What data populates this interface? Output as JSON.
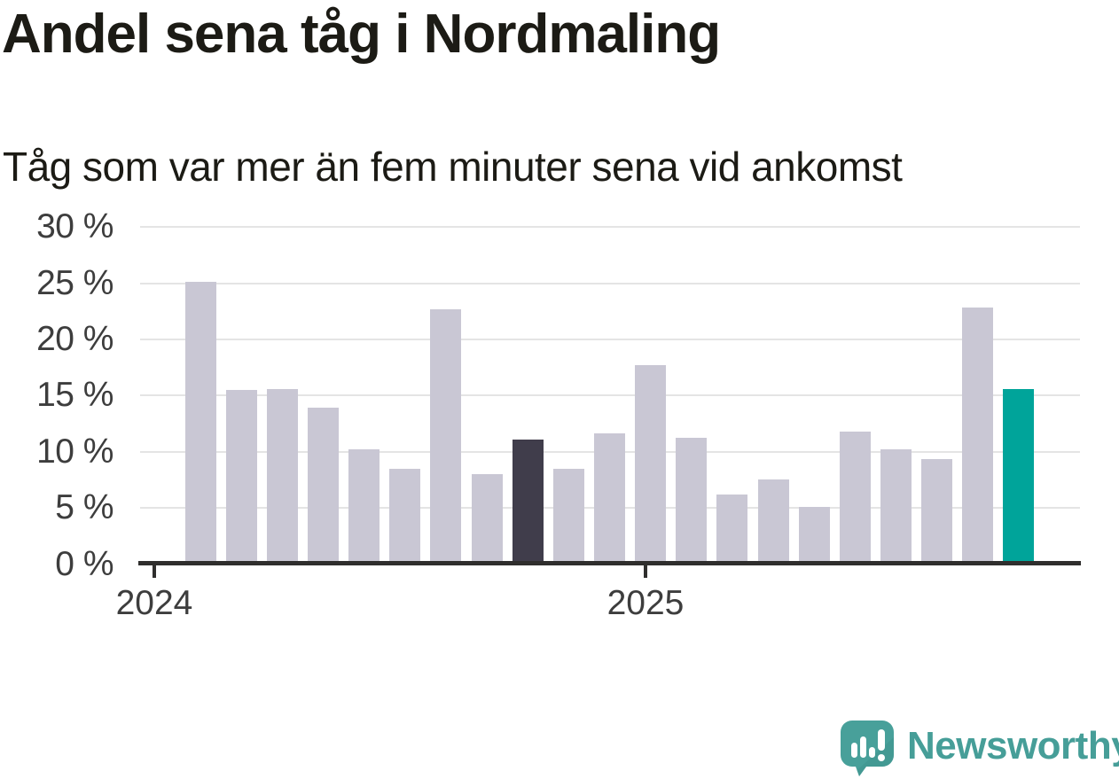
{
  "header": {
    "title": "Andel sena tåg i Nordmaling",
    "subtitle": "Tåg som var mer än fem minuter sena vid ankomst"
  },
  "chart_data": {
    "type": "bar",
    "title": "Andel sena tåg i Nordmaling",
    "subtitle": "Tåg som var mer än fem minuter sena vid ankomst",
    "unit": "%",
    "values": [
      25.0,
      15.4,
      15.5,
      13.8,
      10.1,
      8.4,
      22.6,
      7.9,
      11.0,
      8.4,
      11.5,
      17.6,
      11.1,
      6.1,
      7.4,
      5.0,
      11.7,
      10.1,
      9.2,
      22.7,
      15.5
    ],
    "highlighted_dark_index": 8,
    "highlighted_accent_index": 20,
    "ylim": [
      0,
      30
    ],
    "grid": "horizontal",
    "legend": "none",
    "y_ticks": [
      {
        "label": "30 %",
        "value": 30
      },
      {
        "label": "25 %",
        "value": 25
      },
      {
        "label": "20 %",
        "value": 20
      },
      {
        "label": "15 %",
        "value": 15
      },
      {
        "label": "10 %",
        "value": 10
      },
      {
        "label": "5 %",
        "value": 5
      },
      {
        "label": "0 %",
        "value": 0
      }
    ],
    "x_ticks": [
      {
        "label": "2024",
        "slot": -1
      },
      {
        "label": "2025",
        "slot": 11
      }
    ],
    "colors": {
      "bar": "#c9c7d4",
      "bar_dark": "#403d4b",
      "bar_accent": "#00a49a",
      "gridline": "#e4e4e4",
      "axis": "#2f2e2d",
      "axis_label": "#3d3d3d",
      "text": "#1c1b15"
    }
  },
  "branding": {
    "logo_text": "Newsworthy",
    "logo_icon": "newsworthy-speech-bubble-bar-chart-icon",
    "logo_color": "#469e98"
  }
}
